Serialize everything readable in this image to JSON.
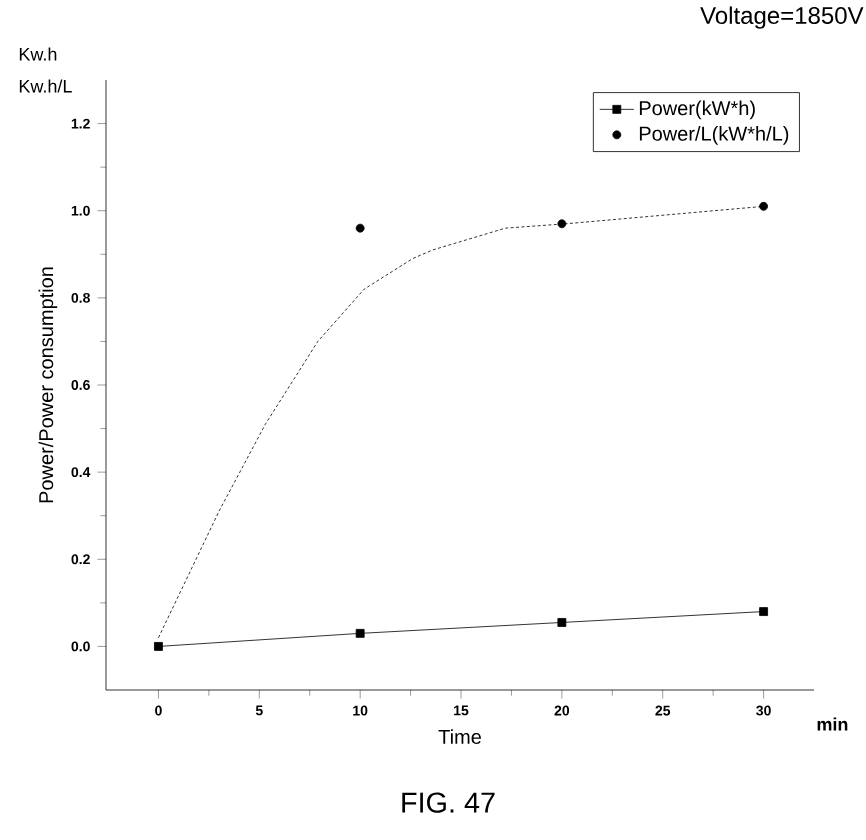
{
  "chart_data": {
    "type": "line",
    "xlabel": "Time",
    "ylabel": "Power/Power consumption",
    "annotations": [
      "Voltage=1850V",
      "Kw.h",
      "Kw.h/L",
      "min",
      "FIG. 47"
    ],
    "xlim": [
      -2.6,
      32.5
    ],
    "ylim": [
      -0.1,
      1.3
    ],
    "xticks": [
      0,
      5,
      10,
      15,
      20,
      25,
      30
    ],
    "yticks": [
      {
        "value": 0,
        "label": "0.0"
      },
      0.2,
      0.4,
      0.6,
      0.8,
      {
        "value": 1,
        "label": "1.0"
      },
      1.2
    ],
    "legend": "top right",
    "grid": false,
    "series": [
      {
        "name": "Power(kW*h)",
        "marker": "square",
        "line_style": "solid",
        "color": "#000000",
        "x": [
          0,
          10,
          20,
          30
        ],
        "values": [
          0,
          0.03,
          0.055,
          0.08
        ]
      },
      {
        "name": "Power/L(kW*h/L)",
        "type": "scatter",
        "marker": "circle",
        "color": "#000000",
        "x": [
          10,
          20,
          30
        ],
        "values": [
          0.96,
          0.97,
          1.01
        ]
      },
      {
        "marker": "none",
        "line_style": "dotted",
        "color": "#000000",
        "x": [
          0,
          3,
          5.3,
          7.9,
          10.2,
          12.6,
          13.6,
          17.2,
          20.2,
          30
        ],
        "values": [
          0.02,
          0.31,
          0.51,
          0.7,
          0.82,
          0.89,
          0.91,
          0.96,
          0.97,
          1.01
        ]
      }
    ]
  }
}
